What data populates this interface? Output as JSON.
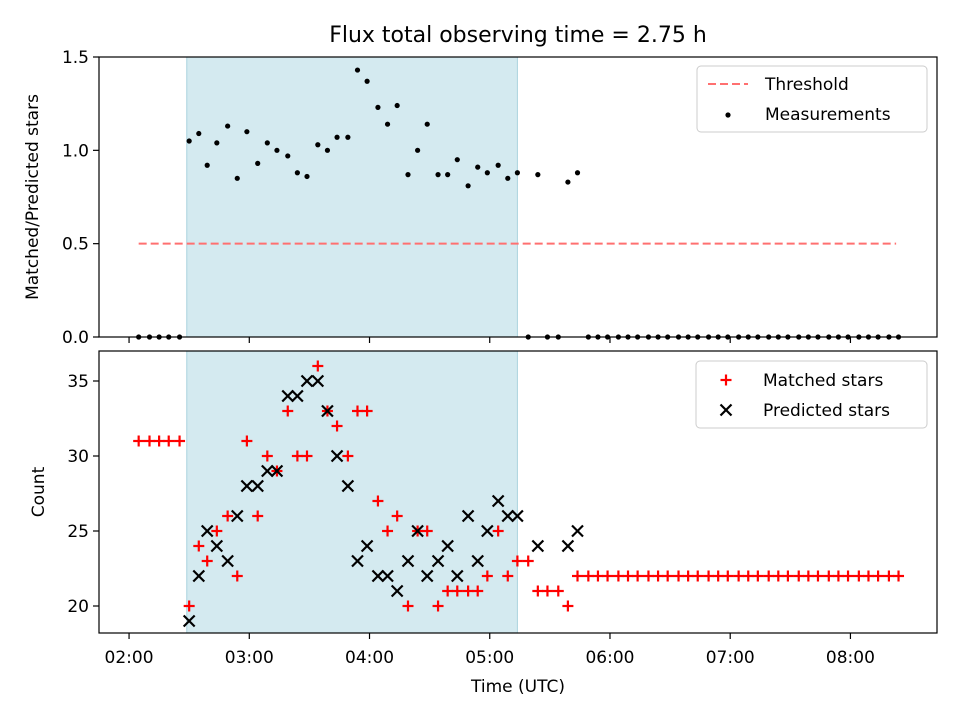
{
  "title": "Flux total observing time = 2.75 h",
  "xlabel": "Time (UTC)",
  "xticks": [
    "02:00",
    "03:00",
    "04:00",
    "05:00",
    "06:00",
    "07:00",
    "08:00"
  ],
  "colors": {
    "shade": "#d4eaf0",
    "threshold": "#ff7070",
    "measurements": "#000000",
    "matched": "#ff0000",
    "predicted": "#000000"
  },
  "chart_data": [
    {
      "type": "scatter",
      "ylabel": "Matched/Predicted stars",
      "ylim": [
        0,
        1.5
      ],
      "yticks": [
        "0.0",
        "0.5",
        "1.0",
        "1.5"
      ],
      "xlim_hours": [
        1.75,
        8.72
      ],
      "shaded_interval_hours": [
        2.48,
        5.23
      ],
      "threshold": {
        "name": "Threshold",
        "value": 0.5,
        "x_hours": [
          2.08,
          8.38
        ]
      },
      "legend_position": "upper right",
      "series": [
        {
          "name": "Measurements",
          "x_hours": [
            2.08,
            2.17,
            2.25,
            2.33,
            2.42,
            2.5,
            2.58,
            2.65,
            2.73,
            2.82,
            2.9,
            2.98,
            3.07,
            3.15,
            3.23,
            3.32,
            3.4,
            3.48,
            3.57,
            3.65,
            3.73,
            3.82,
            3.9,
            3.98,
            4.07,
            4.15,
            4.23,
            4.32,
            4.4,
            4.48,
            4.57,
            4.65,
            4.73,
            4.82,
            4.9,
            4.98,
            5.07,
            5.15,
            5.23,
            5.32,
            5.4,
            5.48,
            5.57,
            5.65,
            5.73,
            5.82,
            5.9,
            5.98,
            6.07,
            6.15,
            6.23,
            6.32,
            6.4,
            6.48,
            6.57,
            6.65,
            6.73,
            6.82,
            6.9,
            6.98,
            7.07,
            7.15,
            7.23,
            7.32,
            7.4,
            7.48,
            7.57,
            7.65,
            7.73,
            7.82,
            7.9,
            7.98,
            8.07,
            8.15,
            8.23,
            8.32,
            8.4
          ],
          "values": [
            0,
            0,
            0,
            0,
            0,
            1.05,
            1.09,
            0.92,
            1.04,
            1.13,
            0.85,
            1.1,
            0.93,
            1.04,
            1.0,
            0.97,
            0.88,
            0.86,
            1.03,
            1.0,
            1.07,
            1.07,
            1.43,
            1.37,
            1.23,
            1.14,
            1.24,
            0.87,
            1.0,
            1.14,
            0.87,
            0.87,
            0.95,
            0.81,
            0.91,
            0.88,
            0.92,
            0.85,
            0.88,
            0,
            0.87,
            0,
            0,
            0.83,
            0.88,
            0,
            0,
            0,
            0,
            0,
            0,
            0,
            0,
            0,
            0,
            0,
            0,
            0,
            0,
            0,
            0,
            0,
            0,
            0,
            0,
            0,
            0,
            0,
            0,
            0,
            0,
            0,
            0,
            0,
            0,
            0,
            0
          ]
        }
      ]
    },
    {
      "type": "scatter",
      "ylabel": "Count",
      "ylim": [
        18.2,
        37
      ],
      "yticks": [
        "20",
        "25",
        "30",
        "35"
      ],
      "legend_position": "upper right",
      "series": [
        {
          "name": "Matched stars",
          "marker": "plus",
          "x_hours": [
            2.08,
            2.17,
            2.25,
            2.33,
            2.42,
            2.5,
            2.58,
            2.65,
            2.73,
            2.82,
            2.9,
            2.98,
            3.07,
            3.15,
            3.23,
            3.32,
            3.4,
            3.48,
            3.57,
            3.65,
            3.73,
            3.82,
            3.9,
            3.98,
            4.07,
            4.15,
            4.23,
            4.32,
            4.4,
            4.48,
            4.57,
            4.65,
            4.73,
            4.82,
            4.9,
            4.98,
            5.07,
            5.15,
            5.23,
            5.32,
            5.4,
            5.48,
            5.57,
            5.65,
            5.73,
            5.82,
            5.9,
            5.98,
            6.07,
            6.15,
            6.23,
            6.32,
            6.4,
            6.48,
            6.57,
            6.65,
            6.73,
            6.82,
            6.9,
            6.98,
            7.07,
            7.15,
            7.23,
            7.32,
            7.4,
            7.48,
            7.57,
            7.65,
            7.73,
            7.82,
            7.9,
            7.98,
            8.07,
            8.15,
            8.23,
            8.32,
            8.4
          ],
          "values": [
            31,
            31,
            31,
            31,
            31,
            20,
            24,
            23,
            25,
            26,
            22,
            31,
            26,
            30,
            29,
            33,
            30,
            30,
            36,
            33,
            32,
            30,
            33,
            33,
            27,
            25,
            26,
            20,
            25,
            25,
            20,
            21,
            21,
            21,
            21,
            22,
            25,
            22,
            23,
            23,
            21,
            21,
            21,
            20,
            22,
            22,
            22,
            22,
            22,
            22,
            22,
            22,
            22,
            22,
            22,
            22,
            22,
            22,
            22,
            22,
            22,
            22,
            22,
            22,
            22,
            22,
            22,
            22,
            22,
            22,
            22,
            22,
            22,
            22,
            22,
            22,
            22
          ]
        },
        {
          "name": "Predicted stars",
          "marker": "x",
          "x_hours": [
            2.5,
            2.58,
            2.65,
            2.73,
            2.82,
            2.9,
            2.98,
            3.07,
            3.15,
            3.23,
            3.32,
            3.4,
            3.48,
            3.57,
            3.65,
            3.73,
            3.82,
            3.9,
            3.98,
            4.07,
            4.15,
            4.23,
            4.32,
            4.4,
            4.48,
            4.57,
            4.65,
            4.73,
            4.82,
            4.9,
            4.98,
            5.07,
            5.15,
            5.23,
            5.4,
            5.65,
            5.73
          ],
          "values": [
            19,
            22,
            25,
            24,
            23,
            26,
            28,
            28,
            29,
            29,
            34,
            34,
            35,
            35,
            33,
            30,
            28,
            23,
            24,
            22,
            22,
            21,
            23,
            25,
            22,
            23,
            24,
            22,
            26,
            23,
            25,
            27,
            26,
            26,
            24,
            24,
            25
          ]
        }
      ]
    }
  ]
}
